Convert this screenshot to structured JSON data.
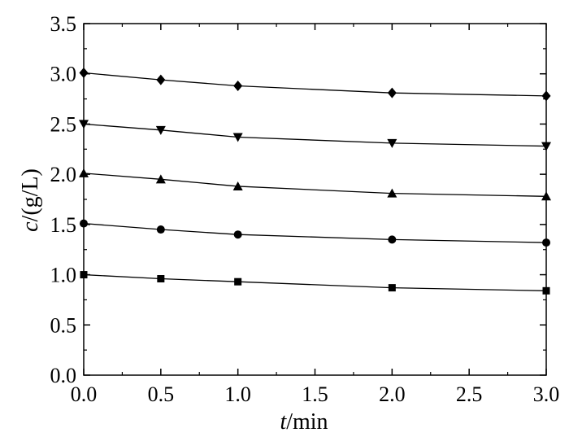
{
  "chart_data": {
    "type": "line",
    "title": "",
    "xlabel": {
      "var": "t",
      "unit": "/min"
    },
    "ylabel": {
      "var": "c",
      "unit": "/(g/L)"
    },
    "xlim": [
      0.0,
      3.0
    ],
    "ylim": [
      0.0,
      3.5
    ],
    "xticks": [
      "0.0",
      "0.5",
      "1.0",
      "1.5",
      "2.0",
      "2.5",
      "3.0"
    ],
    "yticks": [
      "0.0",
      "0.5",
      "1.0",
      "1.5",
      "2.0",
      "2.5",
      "3.0",
      "3.5"
    ],
    "grid": false,
    "legend": "none",
    "x": [
      0.0,
      0.5,
      1.0,
      2.0,
      3.0
    ],
    "series": [
      {
        "marker": "square",
        "values": [
          1.0,
          0.96,
          0.93,
          0.87,
          0.84
        ]
      },
      {
        "marker": "circle",
        "values": [
          1.51,
          1.45,
          1.4,
          1.35,
          1.32
        ]
      },
      {
        "marker": "triangle-up",
        "values": [
          2.01,
          1.95,
          1.88,
          1.81,
          1.78
        ]
      },
      {
        "marker": "triangle-down",
        "values": [
          2.5,
          2.44,
          2.37,
          2.31,
          2.28
        ]
      },
      {
        "marker": "diamond",
        "values": [
          3.01,
          2.94,
          2.88,
          2.81,
          2.78
        ]
      }
    ],
    "colors": {
      "line": "#000000",
      "marker": "#000000",
      "axes": "#000000"
    }
  }
}
